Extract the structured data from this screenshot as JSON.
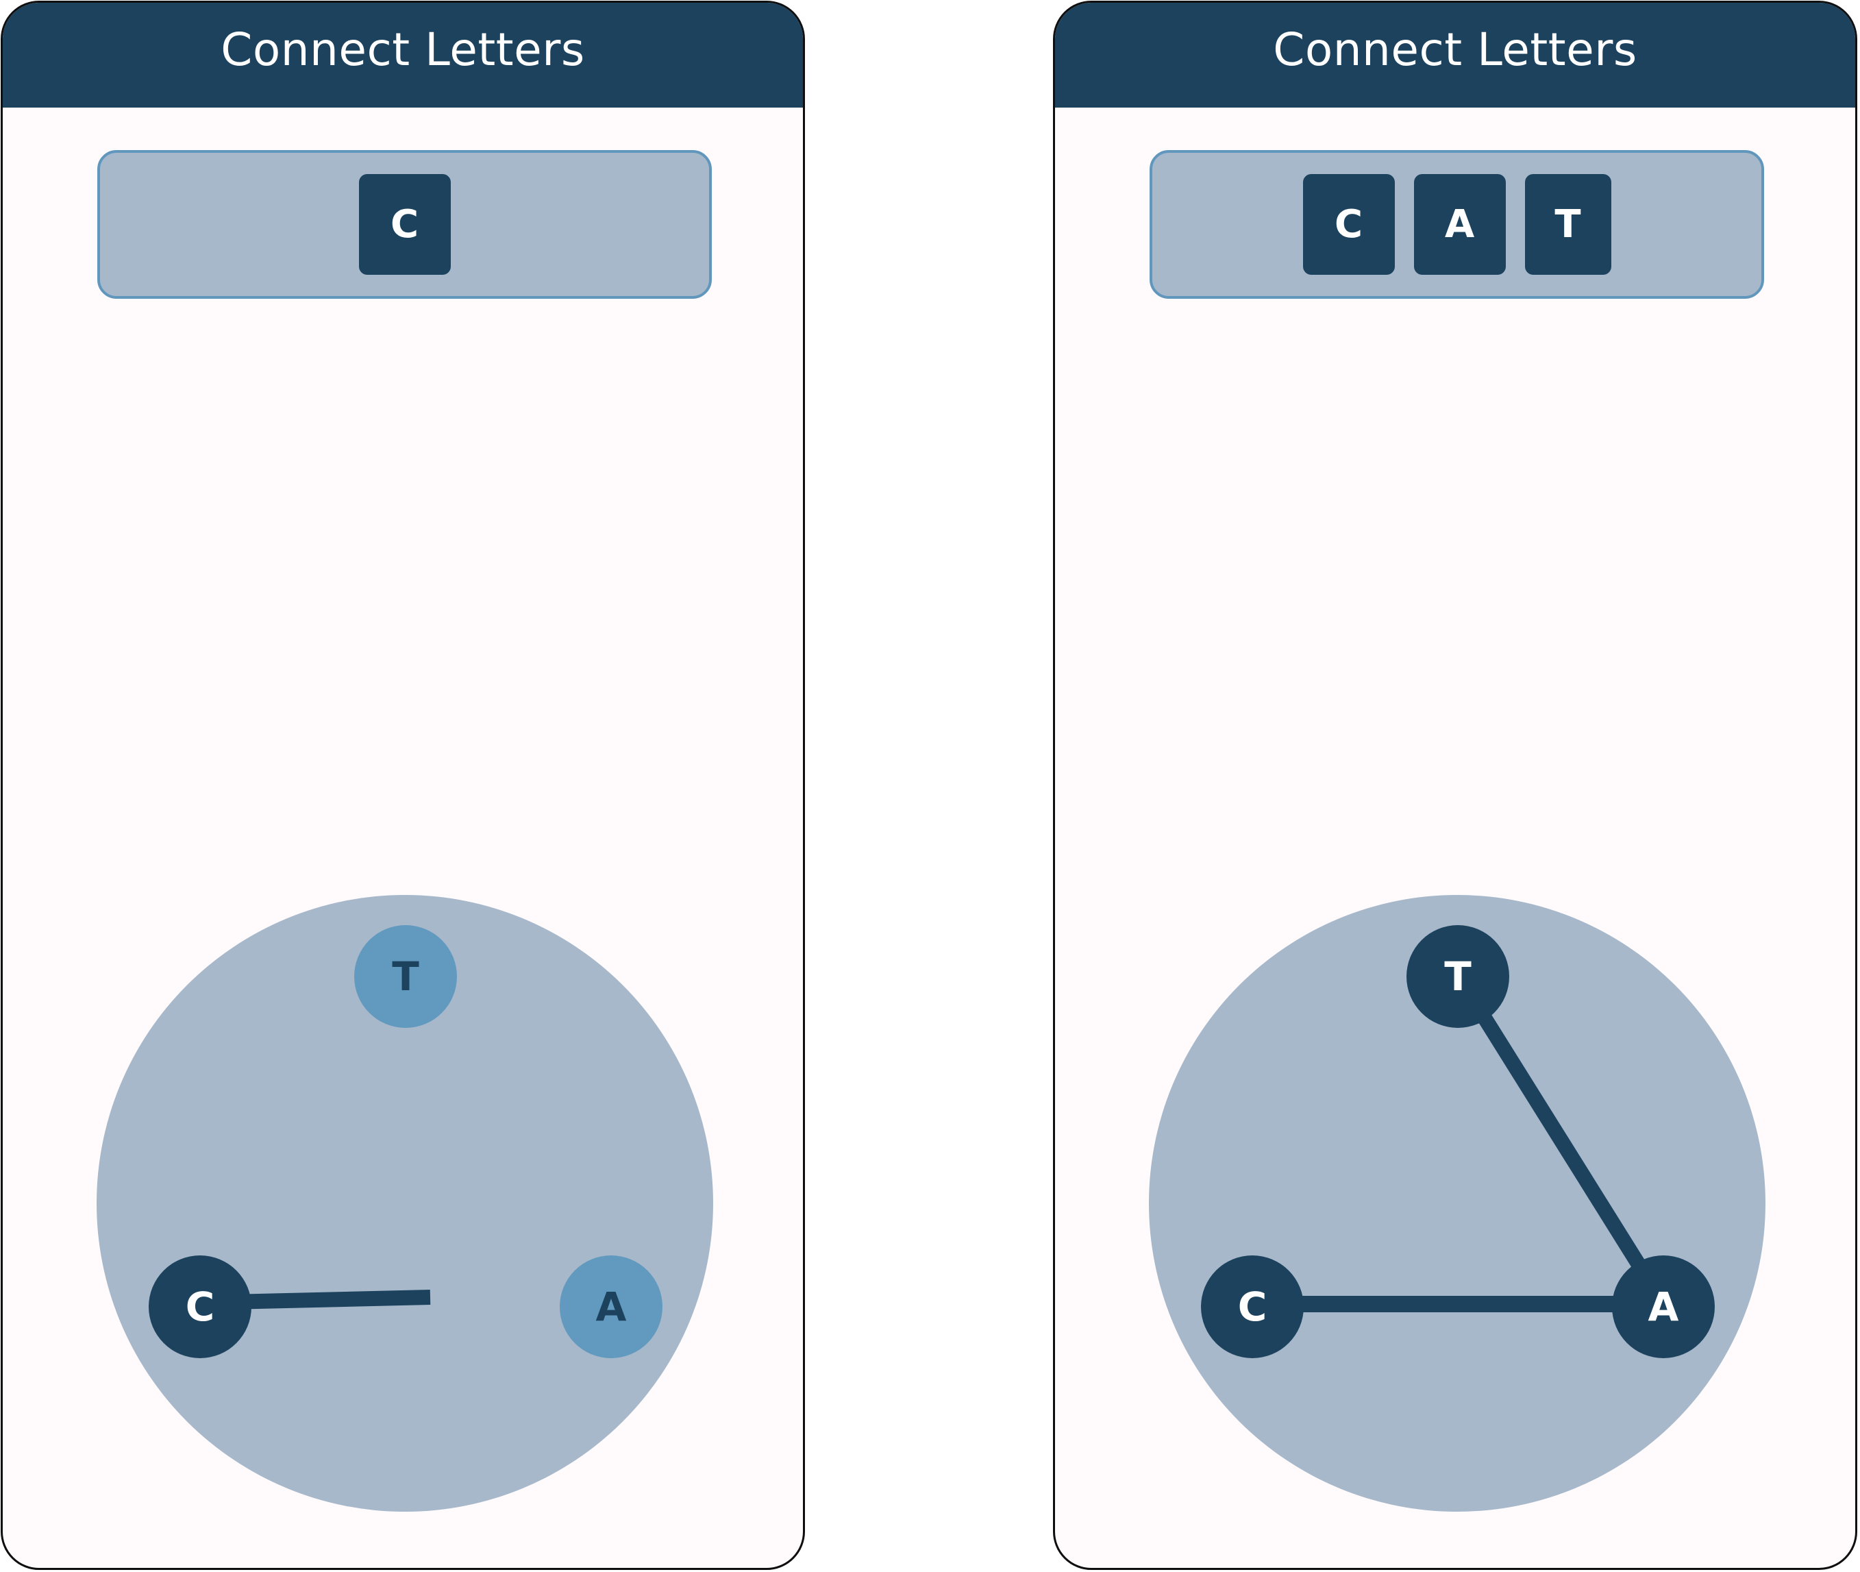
{
  "colors": {
    "header": "#1c425d",
    "panel_background": "#fffafc",
    "word_bar_fill": "#a7b8cb",
    "word_bar_border": "#6197bd",
    "wheel_fill": "#a7b8cb",
    "node_selected": "#1c425d",
    "node_unselected": "#6299be",
    "link_line": "#1c425d"
  },
  "screens": [
    {
      "title": "Connect Letters",
      "formed_letters": [
        "C"
      ],
      "wheel": {
        "letters": [
          {
            "letter": "T",
            "selected": false
          },
          {
            "letter": "C",
            "selected": true
          },
          {
            "letter": "A",
            "selected": false
          }
        ]
      }
    },
    {
      "title": "Connect Letters",
      "formed_letters": [
        "C",
        "A",
        "T"
      ],
      "wheel": {
        "letters": [
          {
            "letter": "T",
            "selected": true
          },
          {
            "letter": "C",
            "selected": true
          },
          {
            "letter": "A",
            "selected": true
          }
        ]
      }
    }
  ]
}
